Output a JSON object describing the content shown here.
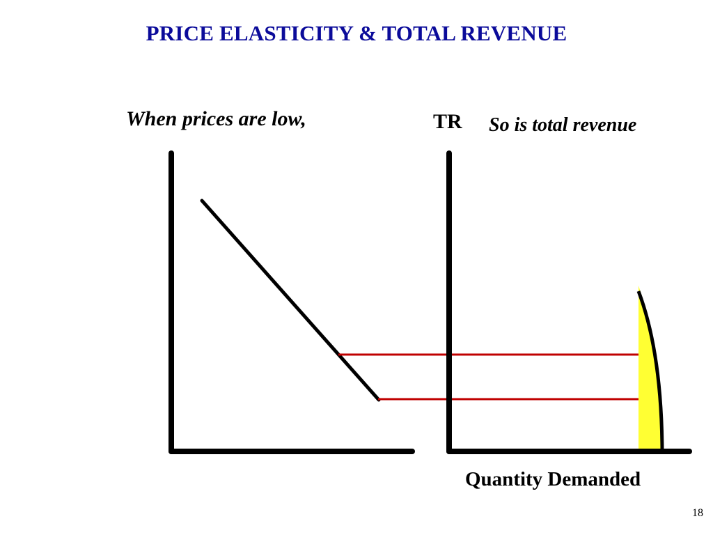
{
  "slide": {
    "title": "PRICE ELASTICITY & TOTAL REVENUE",
    "page_number": "18"
  },
  "left_graph": {
    "caption": "When prices are low,"
  },
  "right_graph": {
    "y_axis_label": "TR",
    "caption": "So is total revenue",
    "x_axis_label": "Quantity Demanded"
  },
  "colors": {
    "title": "#0b0b9a",
    "axes": "#000000",
    "demand_curve": "#000000",
    "projection_lines": "#c00000",
    "tr_fill": "#ffff33"
  }
}
